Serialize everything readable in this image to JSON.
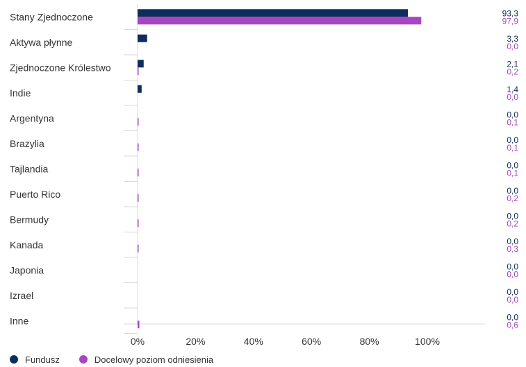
{
  "chart_data": {
    "type": "bar",
    "orientation": "horizontal",
    "categories": [
      "Stany Zjednoczone",
      "Aktywa płynne",
      "Zjednoczone Królestwo",
      "Indie",
      "Argentyna",
      "Brazylia",
      "Tajlandia",
      "Puerto Rico",
      "Bermudy",
      "Kanada",
      "Japonia",
      "Izrael",
      "Inne"
    ],
    "series": [
      {
        "name": "Fundusz",
        "color": "#0f2d5c",
        "values": [
          93.3,
          3.3,
          2.1,
          1.4,
          0.0,
          0.0,
          0.0,
          0.0,
          0.0,
          0.0,
          0.0,
          0.0,
          0.0
        ],
        "labels": [
          "93,3",
          "3,3",
          "2,1",
          "1,4",
          "0,0",
          "0,0",
          "0,0",
          "0,0",
          "0,0",
          "0,0",
          "0,0",
          "0,0",
          "0,0"
        ]
      },
      {
        "name": "Docelowy poziom odniesienia",
        "color": "#a845c2",
        "values": [
          97.9,
          0.0,
          0.2,
          0.0,
          0.1,
          0.1,
          0.1,
          0.2,
          0.2,
          0.3,
          0.0,
          0.0,
          0.6
        ],
        "labels": [
          "97,9",
          "0,0",
          "0,2",
          "0,0",
          "0,1",
          "0,1",
          "0,1",
          "0,2",
          "0,2",
          "0,3",
          "0,0",
          "0,0",
          "0,6"
        ]
      }
    ],
    "xlim": [
      0,
      120
    ],
    "x_ticks": [
      0,
      20,
      40,
      60,
      80,
      100
    ],
    "x_tick_labels": [
      "0%",
      "20%",
      "40%",
      "60%",
      "80%",
      "100%"
    ],
    "grid": false,
    "legend_position": "bottom-left",
    "title": "",
    "xlabel": "",
    "ylabel": ""
  }
}
